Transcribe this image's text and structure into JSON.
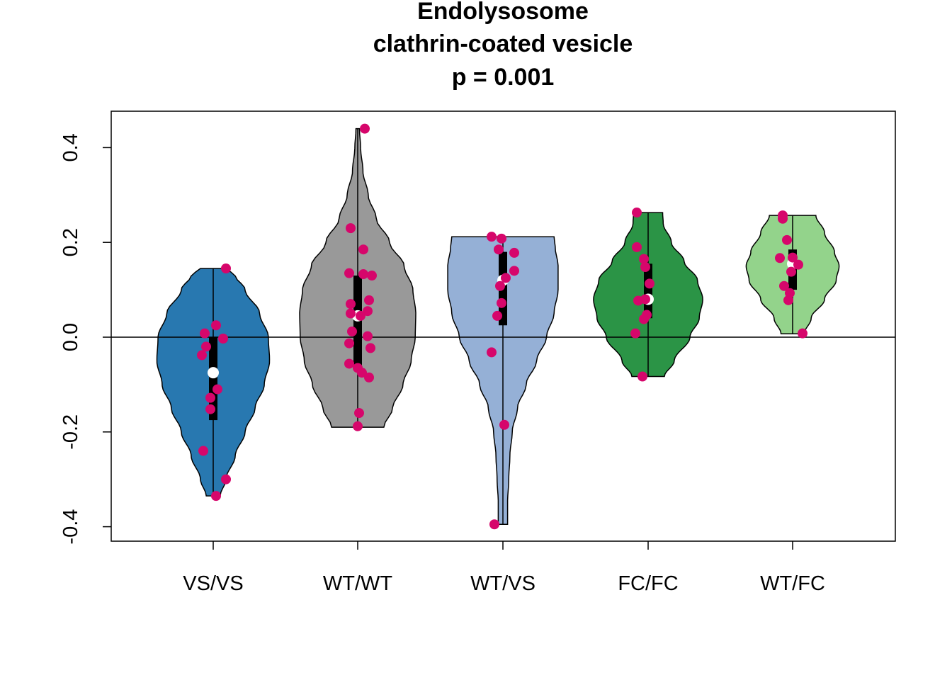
{
  "chart_data": {
    "type": "violin",
    "title_lines": [
      "Endolysosome",
      "clathrin-coated vesicle",
      "p = 0.001"
    ],
    "xlabel": "",
    "ylabel": "",
    "ylim": [
      -0.43,
      0.48
    ],
    "yticks": [
      -0.4,
      -0.2,
      0.0,
      0.2,
      0.4
    ],
    "ytick_labels": [
      "-0.4",
      "-0.2",
      "0.0",
      "0.2",
      "0.4"
    ],
    "reference_line_y": 0,
    "point_color": "#d6066b",
    "median_marker_color": "#ffffff",
    "groups": [
      {
        "label": "VS/VS",
        "color": "#2878b0",
        "min": -0.335,
        "max": 0.145,
        "q1": -0.175,
        "median": -0.075,
        "q3": 0.0,
        "density": [
          [
            -0.335,
            0.12
          ],
          [
            -0.3,
            0.22
          ],
          [
            -0.25,
            0.38
          ],
          [
            -0.2,
            0.55
          ],
          [
            -0.15,
            0.72
          ],
          [
            -0.1,
            0.88
          ],
          [
            -0.05,
            0.97
          ],
          [
            0.0,
            0.95
          ],
          [
            0.05,
            0.8
          ],
          [
            0.1,
            0.55
          ],
          [
            0.13,
            0.38
          ],
          [
            0.145,
            0.22
          ]
        ],
        "points": [
          {
            "y": 0.145,
            "j": 0.09
          },
          {
            "y": 0.025,
            "j": 0.02
          },
          {
            "y": 0.008,
            "j": -0.06
          },
          {
            "y": -0.003,
            "j": 0.07
          },
          {
            "y": -0.02,
            "j": -0.05
          },
          {
            "y": -0.038,
            "j": -0.08
          },
          {
            "y": -0.11,
            "j": 0.03
          },
          {
            "y": -0.128,
            "j": -0.02
          },
          {
            "y": -0.152,
            "j": -0.02
          },
          {
            "y": -0.24,
            "j": -0.07
          },
          {
            "y": -0.3,
            "j": 0.09
          },
          {
            "y": -0.335,
            "j": 0.02
          }
        ]
      },
      {
        "label": "WT/WT",
        "color": "#999999",
        "min": -0.19,
        "max": 0.44,
        "q1": -0.06,
        "median": 0.045,
        "q3": 0.13,
        "density": [
          [
            -0.19,
            0.45
          ],
          [
            -0.15,
            0.6
          ],
          [
            -0.1,
            0.78
          ],
          [
            -0.05,
            0.92
          ],
          [
            0.0,
            0.99
          ],
          [
            0.05,
            1.0
          ],
          [
            0.1,
            0.95
          ],
          [
            0.15,
            0.8
          ],
          [
            0.2,
            0.55
          ],
          [
            0.25,
            0.32
          ],
          [
            0.3,
            0.18
          ],
          [
            0.35,
            0.09
          ],
          [
            0.4,
            0.05
          ],
          [
            0.44,
            0.03
          ]
        ],
        "points": [
          {
            "y": 0.44,
            "j": 0.05
          },
          {
            "y": 0.23,
            "j": -0.05
          },
          {
            "y": 0.185,
            "j": 0.04
          },
          {
            "y": 0.135,
            "j": -0.06
          },
          {
            "y": 0.133,
            "j": 0.04
          },
          {
            "y": 0.13,
            "j": 0.1
          },
          {
            "y": 0.078,
            "j": 0.08
          },
          {
            "y": 0.07,
            "j": -0.05
          },
          {
            "y": 0.055,
            "j": 0.07
          },
          {
            "y": 0.05,
            "j": -0.05
          },
          {
            "y": 0.045,
            "j": 0.02
          },
          {
            "y": 0.012,
            "j": -0.04
          },
          {
            "y": 0.002,
            "j": 0.07
          },
          {
            "y": -0.013,
            "j": -0.06
          },
          {
            "y": -0.023,
            "j": 0.09
          },
          {
            "y": -0.056,
            "j": -0.06
          },
          {
            "y": -0.065,
            "j": 0.0
          },
          {
            "y": -0.075,
            "j": 0.03
          },
          {
            "y": -0.085,
            "j": 0.08
          },
          {
            "y": -0.16,
            "j": 0.01
          },
          {
            "y": -0.188,
            "j": 0.0
          }
        ]
      },
      {
        "label": "WT/VS",
        "color": "#95b0d6",
        "min": -0.395,
        "max": 0.212,
        "q1": 0.025,
        "median": 0.12,
        "q3": 0.18,
        "density": [
          [
            -0.395,
            0.08
          ],
          [
            -0.35,
            0.08
          ],
          [
            -0.3,
            0.1
          ],
          [
            -0.25,
            0.12
          ],
          [
            -0.2,
            0.16
          ],
          [
            -0.15,
            0.25
          ],
          [
            -0.1,
            0.4
          ],
          [
            -0.05,
            0.58
          ],
          [
            0.0,
            0.75
          ],
          [
            0.05,
            0.88
          ],
          [
            0.1,
            0.95
          ],
          [
            0.15,
            0.95
          ],
          [
            0.19,
            0.9
          ],
          [
            0.212,
            0.88
          ]
        ],
        "points": [
          {
            "y": 0.212,
            "j": -0.08
          },
          {
            "y": 0.208,
            "j": -0.01
          },
          {
            "y": 0.185,
            "j": -0.03
          },
          {
            "y": 0.178,
            "j": 0.08
          },
          {
            "y": 0.14,
            "j": 0.08
          },
          {
            "y": 0.125,
            "j": 0.02
          },
          {
            "y": 0.108,
            "j": -0.02
          },
          {
            "y": 0.072,
            "j": -0.01
          },
          {
            "y": 0.045,
            "j": -0.04
          },
          {
            "y": -0.032,
            "j": -0.08
          },
          {
            "y": -0.185,
            "j": 0.01
          },
          {
            "y": -0.395,
            "j": -0.06
          }
        ]
      },
      {
        "label": "FC/FC",
        "color": "#2b9446",
        "min": -0.083,
        "max": 0.263,
        "q1": 0.04,
        "median": 0.08,
        "q3": 0.155,
        "density": [
          [
            -0.083,
            0.28
          ],
          [
            -0.05,
            0.45
          ],
          [
            0.0,
            0.72
          ],
          [
            0.04,
            0.88
          ],
          [
            0.08,
            0.94
          ],
          [
            0.12,
            0.85
          ],
          [
            0.16,
            0.62
          ],
          [
            0.2,
            0.4
          ],
          [
            0.24,
            0.26
          ],
          [
            0.263,
            0.25
          ]
        ],
        "points": [
          {
            "y": 0.263,
            "j": -0.08
          },
          {
            "y": 0.19,
            "j": -0.08
          },
          {
            "y": 0.165,
            "j": -0.03
          },
          {
            "y": 0.148,
            "j": -0.02
          },
          {
            "y": 0.113,
            "j": 0.01
          },
          {
            "y": 0.08,
            "j": -0.02
          },
          {
            "y": 0.077,
            "j": -0.07
          },
          {
            "y": 0.047,
            "j": -0.01
          },
          {
            "y": 0.038,
            "j": -0.03
          },
          {
            "y": 0.008,
            "j": -0.09
          },
          {
            "y": -0.083,
            "j": -0.04
          }
        ]
      },
      {
        "label": "WT/FC",
        "color": "#93d38b",
        "min": 0.007,
        "max": 0.257,
        "q1": 0.1,
        "median": 0.155,
        "q3": 0.185,
        "density": [
          [
            0.007,
            0.2
          ],
          [
            0.04,
            0.32
          ],
          [
            0.08,
            0.55
          ],
          [
            0.12,
            0.75
          ],
          [
            0.15,
            0.8
          ],
          [
            0.18,
            0.72
          ],
          [
            0.22,
            0.55
          ],
          [
            0.257,
            0.4
          ]
        ],
        "points": [
          {
            "y": 0.257,
            "j": -0.07
          },
          {
            "y": 0.25,
            "j": -0.07
          },
          {
            "y": 0.205,
            "j": -0.04
          },
          {
            "y": 0.168,
            "j": 0.0
          },
          {
            "y": 0.167,
            "j": -0.09
          },
          {
            "y": 0.153,
            "j": 0.04
          },
          {
            "y": 0.138,
            "j": -0.01
          },
          {
            "y": 0.108,
            "j": -0.06
          },
          {
            "y": 0.093,
            "j": -0.02
          },
          {
            "y": 0.078,
            "j": -0.03
          },
          {
            "y": 0.008,
            "j": 0.07
          }
        ]
      }
    ]
  }
}
